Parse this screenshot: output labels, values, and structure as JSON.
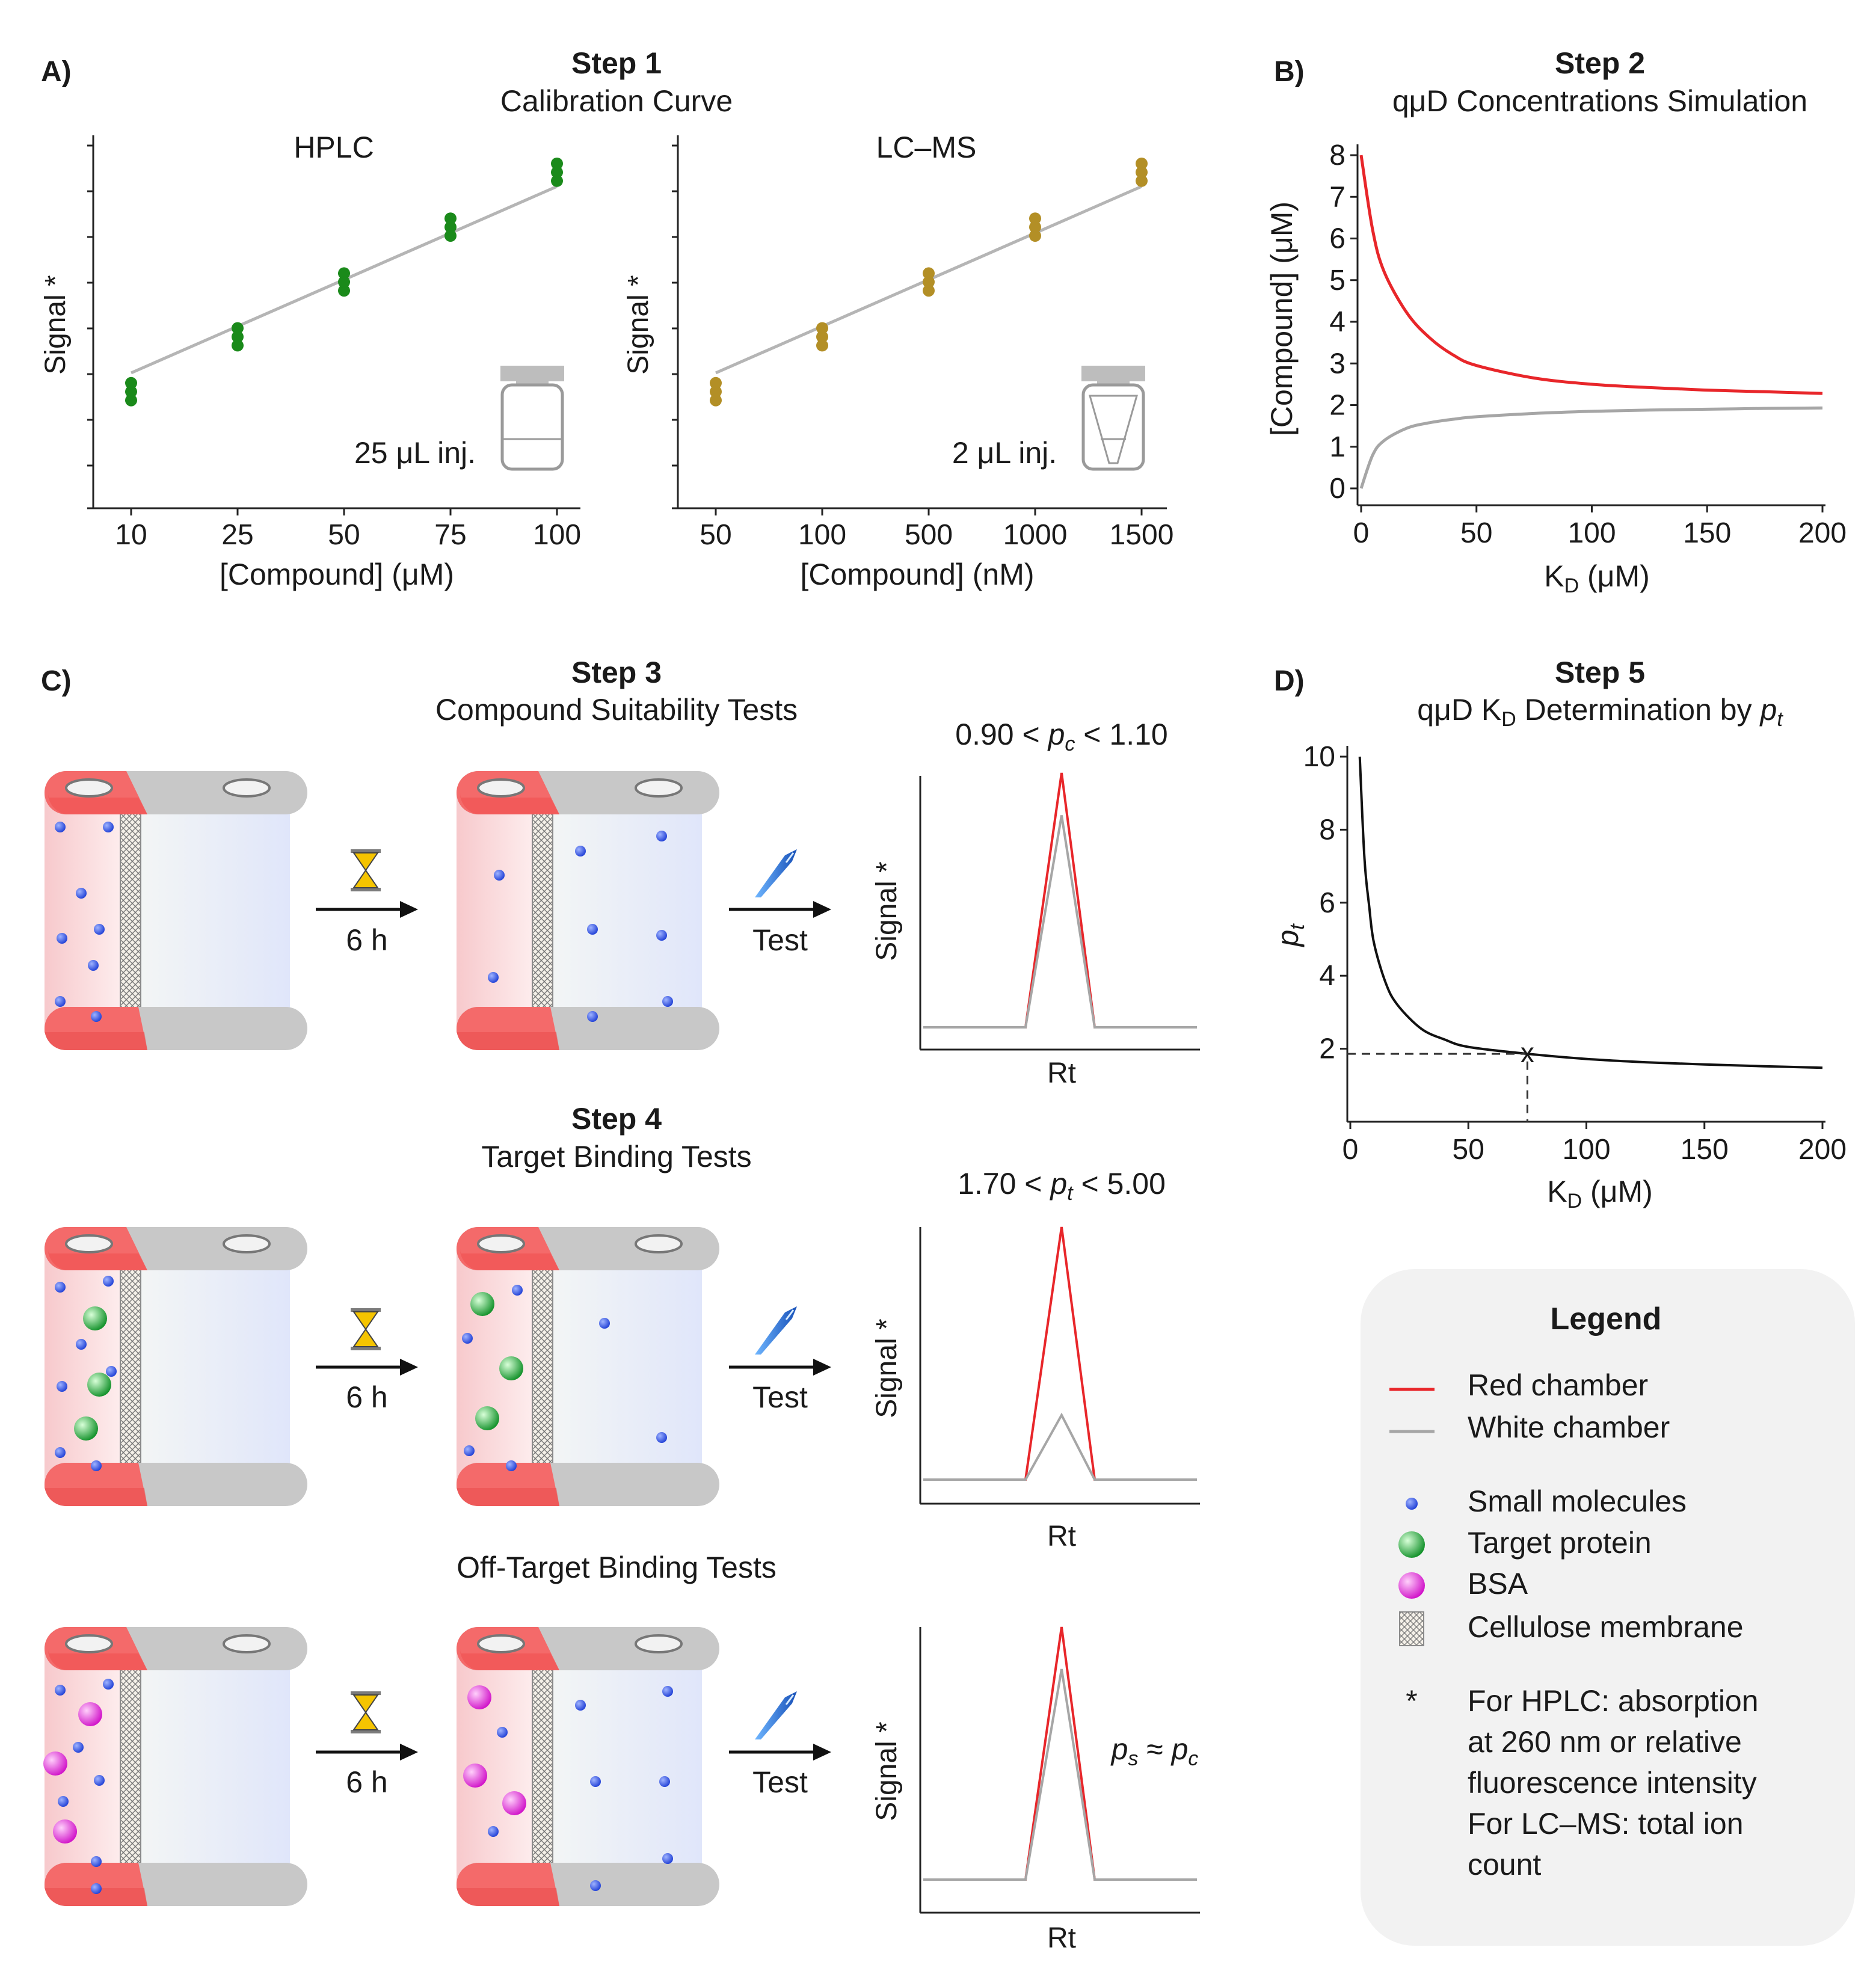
{
  "panels": {
    "a": "A)",
    "b": "B)",
    "c": "C)",
    "d": "D)"
  },
  "step1": {
    "title": "Step 1",
    "subtitle": "Calibration Curve",
    "hplc": {
      "title": "HPLC",
      "ylabel": "Signal *",
      "xlabel": "[Compound] (μM)",
      "inj": "25 μL inj.",
      "ticks": [
        "10",
        "25",
        "50",
        "75",
        "100"
      ]
    },
    "lcms": {
      "title": "LC–MS",
      "ylabel": "Signal *",
      "xlabel": "[Compound] (nM)",
      "inj": "2 μL inj.",
      "ticks": [
        "50",
        "100",
        "500",
        "1000",
        "1500"
      ]
    }
  },
  "step2": {
    "title": "Step 2",
    "subtitle": "qμD Concentrations Simulation",
    "ylabel": "[Compound] (μM)",
    "xlabel_main": "K",
    "xlabel_sub": "D",
    "xlabel_unit": " (μM)",
    "yticks": [
      "0",
      "1",
      "2",
      "3",
      "4",
      "5",
      "6",
      "7",
      "8"
    ],
    "xticks": [
      "0",
      "50",
      "100",
      "150",
      "200"
    ]
  },
  "step3": {
    "title": "Step 3",
    "subtitle": "Compound Suitability Tests",
    "time": "6 h",
    "test": "Test",
    "cond_left": "0.90 < ",
    "cond_var": "p",
    "cond_sub": "c",
    "cond_right": " < 1.10",
    "ylabel": "Signal *",
    "xlabel": "Rt"
  },
  "step4": {
    "title": "Step 4",
    "subtitle": "Target Binding Tests",
    "time": "6 h",
    "test": "Test",
    "cond_left": "1.70 < ",
    "cond_var": "p",
    "cond_sub": "t",
    "cond_right": " < 5.00",
    "ylabel": "Signal *",
    "xlabel": "Rt"
  },
  "offtarget": {
    "title": "Off-Target Binding Tests",
    "time": "6 h",
    "test": "Test",
    "ylabel": "Signal *",
    "xlabel": "Rt",
    "eq_p": "p",
    "eq_s": "s",
    "eq_approx": " ≈ ",
    "eq_c": "c"
  },
  "step5": {
    "title": "Step 5",
    "subtitle_pre": "qμD K",
    "subtitle_sub": "D",
    "subtitle_mid": " Determination by ",
    "subtitle_var": "p",
    "subtitle_var_sub": "t",
    "ylabel_var": "p",
    "ylabel_sub": "t",
    "xlabel_main": "K",
    "xlabel_sub": "D",
    "xlabel_unit": " (μM)",
    "yticks": [
      "2",
      "4",
      "6",
      "8",
      "10"
    ],
    "xticks": [
      "0",
      "50",
      "100",
      "150",
      "200"
    ],
    "marker": "x"
  },
  "legend": {
    "title": "Legend",
    "items": [
      "Red chamber",
      "White chamber",
      "Small molecules",
      "Target protein",
      "BSA",
      "Cellulose membrane"
    ],
    "asterisk": "*",
    "note": [
      "For HPLC: absorption",
      "at 260 nm or relative",
      "fluorescence intensity",
      "For LC–MS: total ion",
      "count"
    ]
  },
  "colors": {
    "red_line": "#e8262a",
    "grey_line": "#a6a6a6",
    "hplc_dots": "#1a8a1a",
    "lcms_dots": "#b38f26",
    "small_molecule": "#1f3fd6",
    "target_protein": "#18a030",
    "bsa": "#e020d0",
    "legend_bg": "#f2f2f2"
  },
  "chart_data": [
    {
      "type": "scatter",
      "title": "HPLC",
      "xlabel": "[Compound] (μM)",
      "ylabel": "Signal *",
      "categories": [
        "10",
        "25",
        "50",
        "75",
        "100"
      ],
      "values": [
        [
          0.28,
          0.31,
          0.34
        ],
        [
          0.47,
          0.5,
          0.53
        ],
        [
          0.66,
          0.69,
          0.72
        ],
        [
          0.85,
          0.88,
          0.91
        ],
        [
          1.04,
          1.07,
          1.1
        ]
      ],
      "fit": "linear"
    },
    {
      "type": "scatter",
      "title": "LC–MS",
      "xlabel": "[Compound] (nM)",
      "ylabel": "Signal *",
      "categories": [
        "50",
        "100",
        "500",
        "1000",
        "1500"
      ],
      "values": [
        [
          0.28,
          0.31,
          0.34
        ],
        [
          0.47,
          0.5,
          0.53
        ],
        [
          0.66,
          0.69,
          0.72
        ],
        [
          0.85,
          0.88,
          0.91
        ],
        [
          1.04,
          1.07,
          1.1
        ]
      ],
      "fit": "linear"
    },
    {
      "type": "line",
      "title": "qμD Concentrations Simulation",
      "xlabel": "KD (μM)",
      "ylabel": "[Compound] (μM)",
      "xlim": [
        0,
        200
      ],
      "ylim": [
        0,
        8
      ],
      "series": [
        {
          "name": "Red chamber",
          "x": [
            0,
            5,
            10,
            20,
            30,
            40,
            50,
            75,
            100,
            125,
            150,
            175,
            200
          ],
          "values": [
            8.0,
            6.2,
            5.2,
            4.2,
            3.6,
            3.2,
            2.95,
            2.65,
            2.5,
            2.42,
            2.36,
            2.32,
            2.28
          ]
        },
        {
          "name": "White chamber",
          "x": [
            0,
            5,
            10,
            20,
            30,
            40,
            50,
            75,
            100,
            125,
            150,
            175,
            200
          ],
          "values": [
            0.0,
            0.8,
            1.15,
            1.45,
            1.58,
            1.66,
            1.72,
            1.8,
            1.85,
            1.88,
            1.9,
            1.92,
            1.93
          ]
        }
      ]
    },
    {
      "type": "line",
      "title": "qμD KD Determination by pt",
      "xlabel": "KD (μM)",
      "ylabel": "pt",
      "xlim": [
        0,
        200
      ],
      "ylim": [
        0,
        10
      ],
      "series": [
        {
          "name": "pt",
          "x": [
            4,
            6,
            8,
            10,
            15,
            20,
            30,
            40,
            50,
            75,
            100,
            125,
            150,
            175,
            200
          ],
          "values": [
            10.0,
            7.2,
            5.9,
            4.9,
            3.8,
            3.2,
            2.55,
            2.25,
            2.05,
            1.86,
            1.72,
            1.63,
            1.57,
            1.52,
            1.48
          ]
        }
      ],
      "marked_point": {
        "x": 75,
        "y": 1.86
      }
    },
    {
      "type": "line",
      "title": "0.90 < pc < 1.10",
      "xlabel": "Rt",
      "ylabel": "Signal *",
      "series": [
        {
          "name": "Red chamber",
          "values": [
            0.1,
            0.1,
            1.0,
            0.1,
            0.1
          ]
        },
        {
          "name": "White chamber",
          "values": [
            0.1,
            0.1,
            0.85,
            0.1,
            0.1
          ]
        }
      ]
    },
    {
      "type": "line",
      "title": "1.70 < pt < 5.00",
      "xlabel": "Rt",
      "ylabel": "Signal *",
      "series": [
        {
          "name": "Red chamber",
          "values": [
            0.1,
            0.1,
            1.0,
            0.1,
            0.1
          ]
        },
        {
          "name": "White chamber",
          "values": [
            0.1,
            0.1,
            0.33,
            0.1,
            0.1
          ]
        }
      ]
    },
    {
      "type": "line",
      "title": "ps ≈ pc",
      "xlabel": "Rt",
      "ylabel": "Signal *",
      "series": [
        {
          "name": "Red chamber",
          "values": [
            0.1,
            0.1,
            1.0,
            0.1,
            0.1
          ]
        },
        {
          "name": "White chamber",
          "values": [
            0.1,
            0.1,
            0.85,
            0.1,
            0.1
          ]
        }
      ]
    }
  ]
}
